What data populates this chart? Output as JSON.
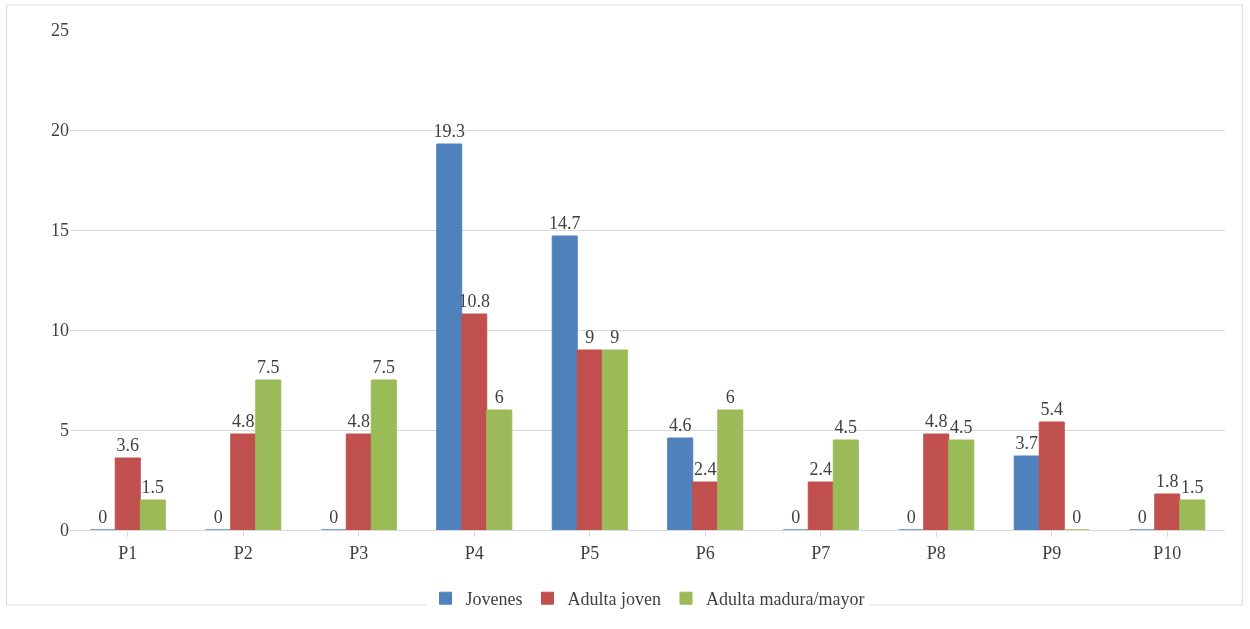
{
  "chart_data": {
    "type": "bar",
    "categories": [
      "P1",
      "P2",
      "P3",
      "P4",
      "P5",
      "P6",
      "P7",
      "P8",
      "P9",
      "P10"
    ],
    "series": [
      {
        "name": "Jovenes",
        "color": "#4f81bd",
        "values": [
          0,
          0,
          0,
          19.3,
          14.7,
          4.6,
          0,
          0,
          3.7,
          0
        ]
      },
      {
        "name": "Adulta joven",
        "color": "#c0504d",
        "values": [
          3.6,
          4.8,
          4.8,
          10.8,
          9,
          2.4,
          2.4,
          4.8,
          5.4,
          1.8
        ]
      },
      {
        "name": "Adulta madura/mayor",
        "color": "#9bbb59",
        "values": [
          1.5,
          7.5,
          7.5,
          6,
          9,
          6,
          4.5,
          4.5,
          0,
          1.5
        ]
      }
    ],
    "ylim": [
      0,
      25
    ],
    "yticks": [
      0,
      5,
      10,
      15,
      20,
      25
    ],
    "grid": "y",
    "legend": "bottom",
    "data_labels": true
  }
}
